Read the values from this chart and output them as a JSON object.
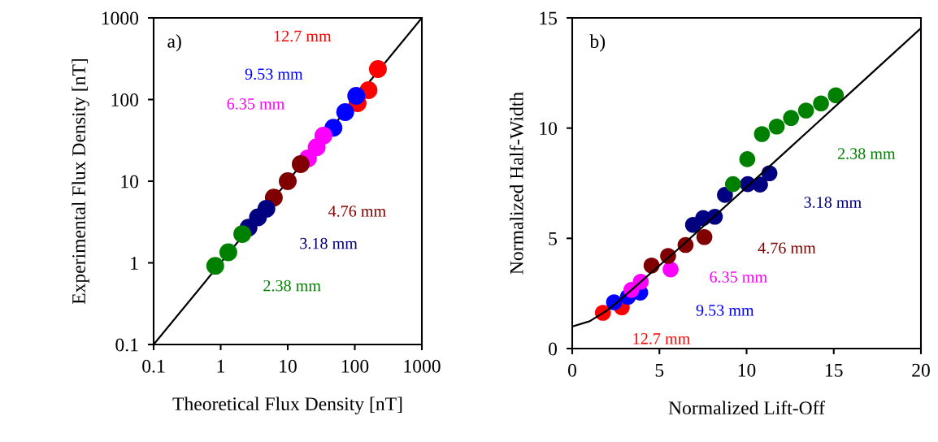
{
  "chart_data": [
    {
      "type": "scatter",
      "xlabel": "Theoretical Flux Density [nT]",
      "ylabel": "Experimental Flux Density [nT]",
      "log": "xy",
      "xlim": [
        0.1,
        1000
      ],
      "ylim": [
        0.1,
        1000
      ],
      "xticks": [
        0.1,
        1,
        10,
        100,
        1000
      ],
      "yticks": [
        0.1,
        1,
        10,
        100,
        1000
      ],
      "grid": false,
      "legend": false,
      "marker": "circle",
      "annotations": [
        "a)"
      ],
      "series": [
        {
          "type": "line",
          "color": "#000000",
          "marker": "none",
          "line_style": "solid",
          "x": [
            0.1,
            1000
          ],
          "values": [
            0.1,
            1000
          ]
        },
        {
          "name": "12.7 mm",
          "color": "#ff0000",
          "x": [
            110,
            160,
            221
          ],
          "values": [
            90,
            130,
            236
          ]
        },
        {
          "name": "9.53 mm",
          "color": "#0000ff",
          "x": [
            48,
            72,
            105
          ],
          "values": [
            45,
            70,
            111
          ]
        },
        {
          "name": "6.35 mm",
          "color": "#ff00ff",
          "x": [
            20,
            27,
            34
          ],
          "values": [
            19,
            26,
            36
          ]
        },
        {
          "name": "4.76 mm",
          "color": "#800000",
          "x": [
            6.2,
            10,
            15.6
          ],
          "values": [
            6.3,
            10,
            16.2
          ]
        },
        {
          "name": "3.18 mm",
          "color": "#000080",
          "x": [
            2.6,
            3.6,
            4.8
          ],
          "values": [
            2.7,
            3.6,
            4.6
          ]
        },
        {
          "name": "2.38 mm",
          "color": "#008000",
          "x": [
            0.83,
            1.3,
            2.1
          ],
          "values": [
            0.92,
            1.35,
            2.25
          ]
        }
      ]
    },
    {
      "type": "scatter",
      "xlabel": "Normalized Lift-Off",
      "ylabel": "Normalized Half-Width",
      "xlim": [
        0,
        20
      ],
      "ylim": [
        0,
        15
      ],
      "xticks": [
        0,
        5,
        10,
        15,
        20
      ],
      "yticks": [
        0,
        5,
        10,
        15
      ],
      "grid": false,
      "legend": false,
      "marker": "circle",
      "annotations": [
        "b)"
      ],
      "series": [
        {
          "name": "12.7 mm",
          "color": "#ff0000",
          "x": [
            1.76,
            2.84
          ],
          "values": [
            1.62,
            1.87
          ]
        },
        {
          "name": "9.53 mm",
          "color": "#0000ff",
          "x": [
            2.4,
            3.2,
            3.9
          ],
          "values": [
            2.1,
            2.35,
            2.54
          ]
        },
        {
          "name": "6.35 mm",
          "color": "#ff00ff",
          "x": [
            3.39,
            3.93,
            5.64
          ],
          "values": [
            2.66,
            3.03,
            3.59
          ]
        },
        {
          "name": "4.76 mm",
          "color": "#800000",
          "x": [
            4.55,
            5.5,
            6.5,
            7.58
          ],
          "values": [
            3.77,
            4.2,
            4.7,
            5.06
          ]
        },
        {
          "name": "3.18 mm",
          "color": "#000080",
          "x": [
            6.93,
            7.51,
            8.18,
            8.76,
            10.07,
            10.77,
            11.31
          ],
          "values": [
            5.61,
            5.92,
            5.98,
            6.97,
            7.46,
            7.44,
            7.95
          ]
        },
        {
          "name": "2.38 mm",
          "color": "#008000",
          "x": [
            9.22,
            10.04,
            10.88,
            11.73,
            12.55,
            13.41,
            14.27,
            15.12
          ],
          "values": [
            7.46,
            8.59,
            9.73,
            10.07,
            10.46,
            10.8,
            11.12,
            11.49
          ]
        },
        {
          "type": "line",
          "color": "#000000",
          "marker": "none",
          "line_style": "solid",
          "x": [
            0,
            1,
            2,
            3,
            4,
            5,
            6,
            8,
            10,
            12,
            14,
            16,
            18,
            20
          ],
          "values": [
            1.0,
            1.24,
            1.73,
            2.38,
            3.07,
            3.77,
            4.46,
            5.89,
            7.32,
            8.76,
            10.2,
            11.64,
            13.09,
            14.53
          ]
        }
      ]
    }
  ]
}
